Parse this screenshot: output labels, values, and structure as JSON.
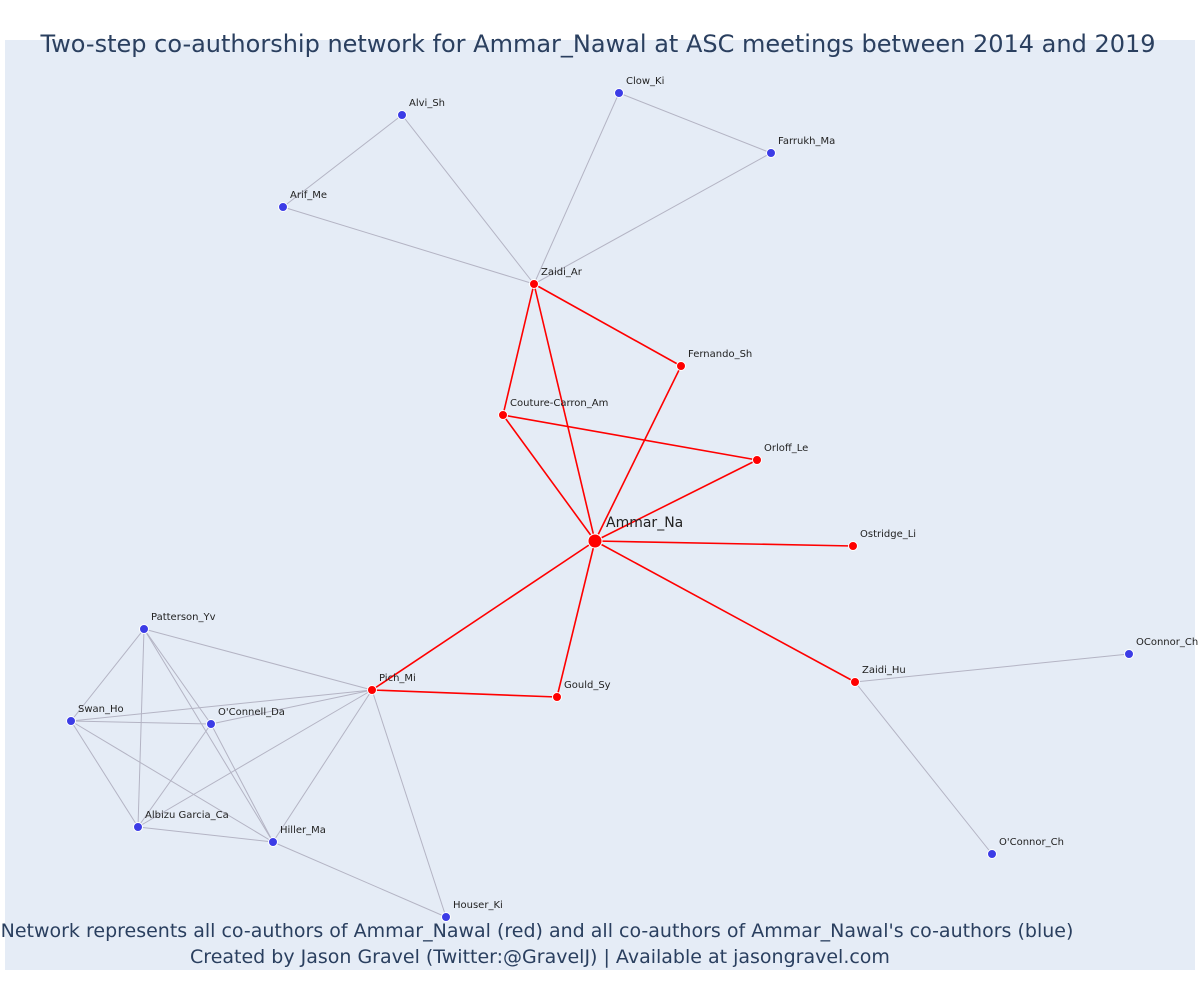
{
  "title": "Two-step co-authorship network for Ammar_Nawal at ASC meetings between 2014 and 2019",
  "footer": {
    "line1": "Network represents all co-authors of Ammar_Nawal (red) and all co-authors of Ammar_Nawal's co-authors (blue)",
    "line2": "Created by Jason Gravel (Twitter:@GravelJ) | Available at jasongravel.com"
  },
  "colors": {
    "background": "#e5ecf6",
    "red": "#ff0000",
    "blue": "#3c3ce6",
    "gray_edge": "#b4b4c4",
    "title": "#2a3f5f"
  },
  "nodes": [
    {
      "id": "Ammar_Na",
      "label": "Ammar_Na",
      "group": "focal"
    },
    {
      "id": "Zaidi_Ar",
      "label": "Zaidi_Ar",
      "group": "red"
    },
    {
      "id": "Fernando_Sh",
      "label": "Fernando_Sh",
      "group": "red"
    },
    {
      "id": "Couture-Carron_Am",
      "label": "Couture-Carron_Am",
      "group": "red"
    },
    {
      "id": "Orloff_Le",
      "label": "Orloff_Le",
      "group": "red"
    },
    {
      "id": "Ostridge_Li",
      "label": "Ostridge_Li",
      "group": "red"
    },
    {
      "id": "Zaidi_Hu",
      "label": "Zaidi_Hu",
      "group": "red"
    },
    {
      "id": "Gould_Sy",
      "label": "Gould_Sy",
      "group": "red"
    },
    {
      "id": "Pich_Mi",
      "label": "Pich_Mi",
      "group": "red"
    },
    {
      "id": "Alvi_Sh",
      "label": "Alvi_Sh",
      "group": "blue"
    },
    {
      "id": "Clow_Ki",
      "label": "Clow_Ki",
      "group": "blue"
    },
    {
      "id": "Farrukh_Ma",
      "label": "Farrukh_Ma",
      "group": "blue"
    },
    {
      "id": "Arif_Me",
      "label": "Arif_Me",
      "group": "blue"
    },
    {
      "id": "OConnor_Ch",
      "label": "OConnor_Ch",
      "group": "blue"
    },
    {
      "id": "O'Connor_Ch",
      "label": "O'Connor_Ch",
      "group": "blue"
    },
    {
      "id": "Patterson_Yv",
      "label": "Patterson_Yv",
      "group": "blue"
    },
    {
      "id": "Swan_Ho",
      "label": "Swan_Ho",
      "group": "blue"
    },
    {
      "id": "O'Connell_Da",
      "label": "O'Connell_Da",
      "group": "blue"
    },
    {
      "id": "Albizu Garcia_Ca",
      "label": "Albizu Garcia_Ca",
      "group": "blue"
    },
    {
      "id": "Hiller_Ma",
      "label": "Hiller_Ma",
      "group": "blue"
    },
    {
      "id": "Houser_Ki",
      "label": "Houser_Ki",
      "group": "blue"
    }
  ],
  "edges": [
    {
      "source": "Ammar_Na",
      "target": "Zaidi_Ar",
      "color": "red"
    },
    {
      "source": "Ammar_Na",
      "target": "Fernando_Sh",
      "color": "red"
    },
    {
      "source": "Ammar_Na",
      "target": "Couture-Carron_Am",
      "color": "red"
    },
    {
      "source": "Ammar_Na",
      "target": "Orloff_Le",
      "color": "red"
    },
    {
      "source": "Ammar_Na",
      "target": "Ostridge_Li",
      "color": "red"
    },
    {
      "source": "Ammar_Na",
      "target": "Zaidi_Hu",
      "color": "red"
    },
    {
      "source": "Ammar_Na",
      "target": "Gould_Sy",
      "color": "red"
    },
    {
      "source": "Ammar_Na",
      "target": "Pich_Mi",
      "color": "red"
    },
    {
      "source": "Zaidi_Ar",
      "target": "Couture-Carron_Am",
      "color": "red"
    },
    {
      "source": "Zaidi_Ar",
      "target": "Fernando_Sh",
      "color": "red"
    },
    {
      "source": "Couture-Carron_Am",
      "target": "Orloff_Le",
      "color": "red"
    },
    {
      "source": "Pich_Mi",
      "target": "Gould_Sy",
      "color": "red"
    },
    {
      "source": "Zaidi_Ar",
      "target": "Alvi_Sh",
      "color": "gray"
    },
    {
      "source": "Zaidi_Ar",
      "target": "Arif_Me",
      "color": "gray"
    },
    {
      "source": "Zaidi_Ar",
      "target": "Clow_Ki",
      "color": "gray"
    },
    {
      "source": "Zaidi_Ar",
      "target": "Farrukh_Ma",
      "color": "gray"
    },
    {
      "source": "Alvi_Sh",
      "target": "Arif_Me",
      "color": "gray"
    },
    {
      "source": "Clow_Ki",
      "target": "Farrukh_Ma",
      "color": "gray"
    },
    {
      "source": "Zaidi_Hu",
      "target": "OConnor_Ch",
      "color": "gray"
    },
    {
      "source": "Zaidi_Hu",
      "target": "O'Connor_Ch",
      "color": "gray"
    },
    {
      "source": "Pich_Mi",
      "target": "Patterson_Yv",
      "color": "gray"
    },
    {
      "source": "Pich_Mi",
      "target": "Swan_Ho",
      "color": "gray"
    },
    {
      "source": "Pich_Mi",
      "target": "O'Connell_Da",
      "color": "gray"
    },
    {
      "source": "Pich_Mi",
      "target": "Albizu Garcia_Ca",
      "color": "gray"
    },
    {
      "source": "Pich_Mi",
      "target": "Hiller_Ma",
      "color": "gray"
    },
    {
      "source": "Pich_Mi",
      "target": "Houser_Ki",
      "color": "gray"
    },
    {
      "source": "Patterson_Yv",
      "target": "Swan_Ho",
      "color": "gray"
    },
    {
      "source": "Patterson_Yv",
      "target": "O'Connell_Da",
      "color": "gray"
    },
    {
      "source": "Patterson_Yv",
      "target": "Albizu Garcia_Ca",
      "color": "gray"
    },
    {
      "source": "Patterson_Yv",
      "target": "Hiller_Ma",
      "color": "gray"
    },
    {
      "source": "Swan_Ho",
      "target": "O'Connell_Da",
      "color": "gray"
    },
    {
      "source": "Swan_Ho",
      "target": "Albizu Garcia_Ca",
      "color": "gray"
    },
    {
      "source": "Swan_Ho",
      "target": "Hiller_Ma",
      "color": "gray"
    },
    {
      "source": "O'Connell_Da",
      "target": "Albizu Garcia_Ca",
      "color": "gray"
    },
    {
      "source": "O'Connell_Da",
      "target": "Hiller_Ma",
      "color": "gray"
    },
    {
      "source": "Albizu Garcia_Ca",
      "target": "Hiller_Ma",
      "color": "gray"
    },
    {
      "source": "Hiller_Ma",
      "target": "Houser_Ki",
      "color": "gray"
    }
  ]
}
